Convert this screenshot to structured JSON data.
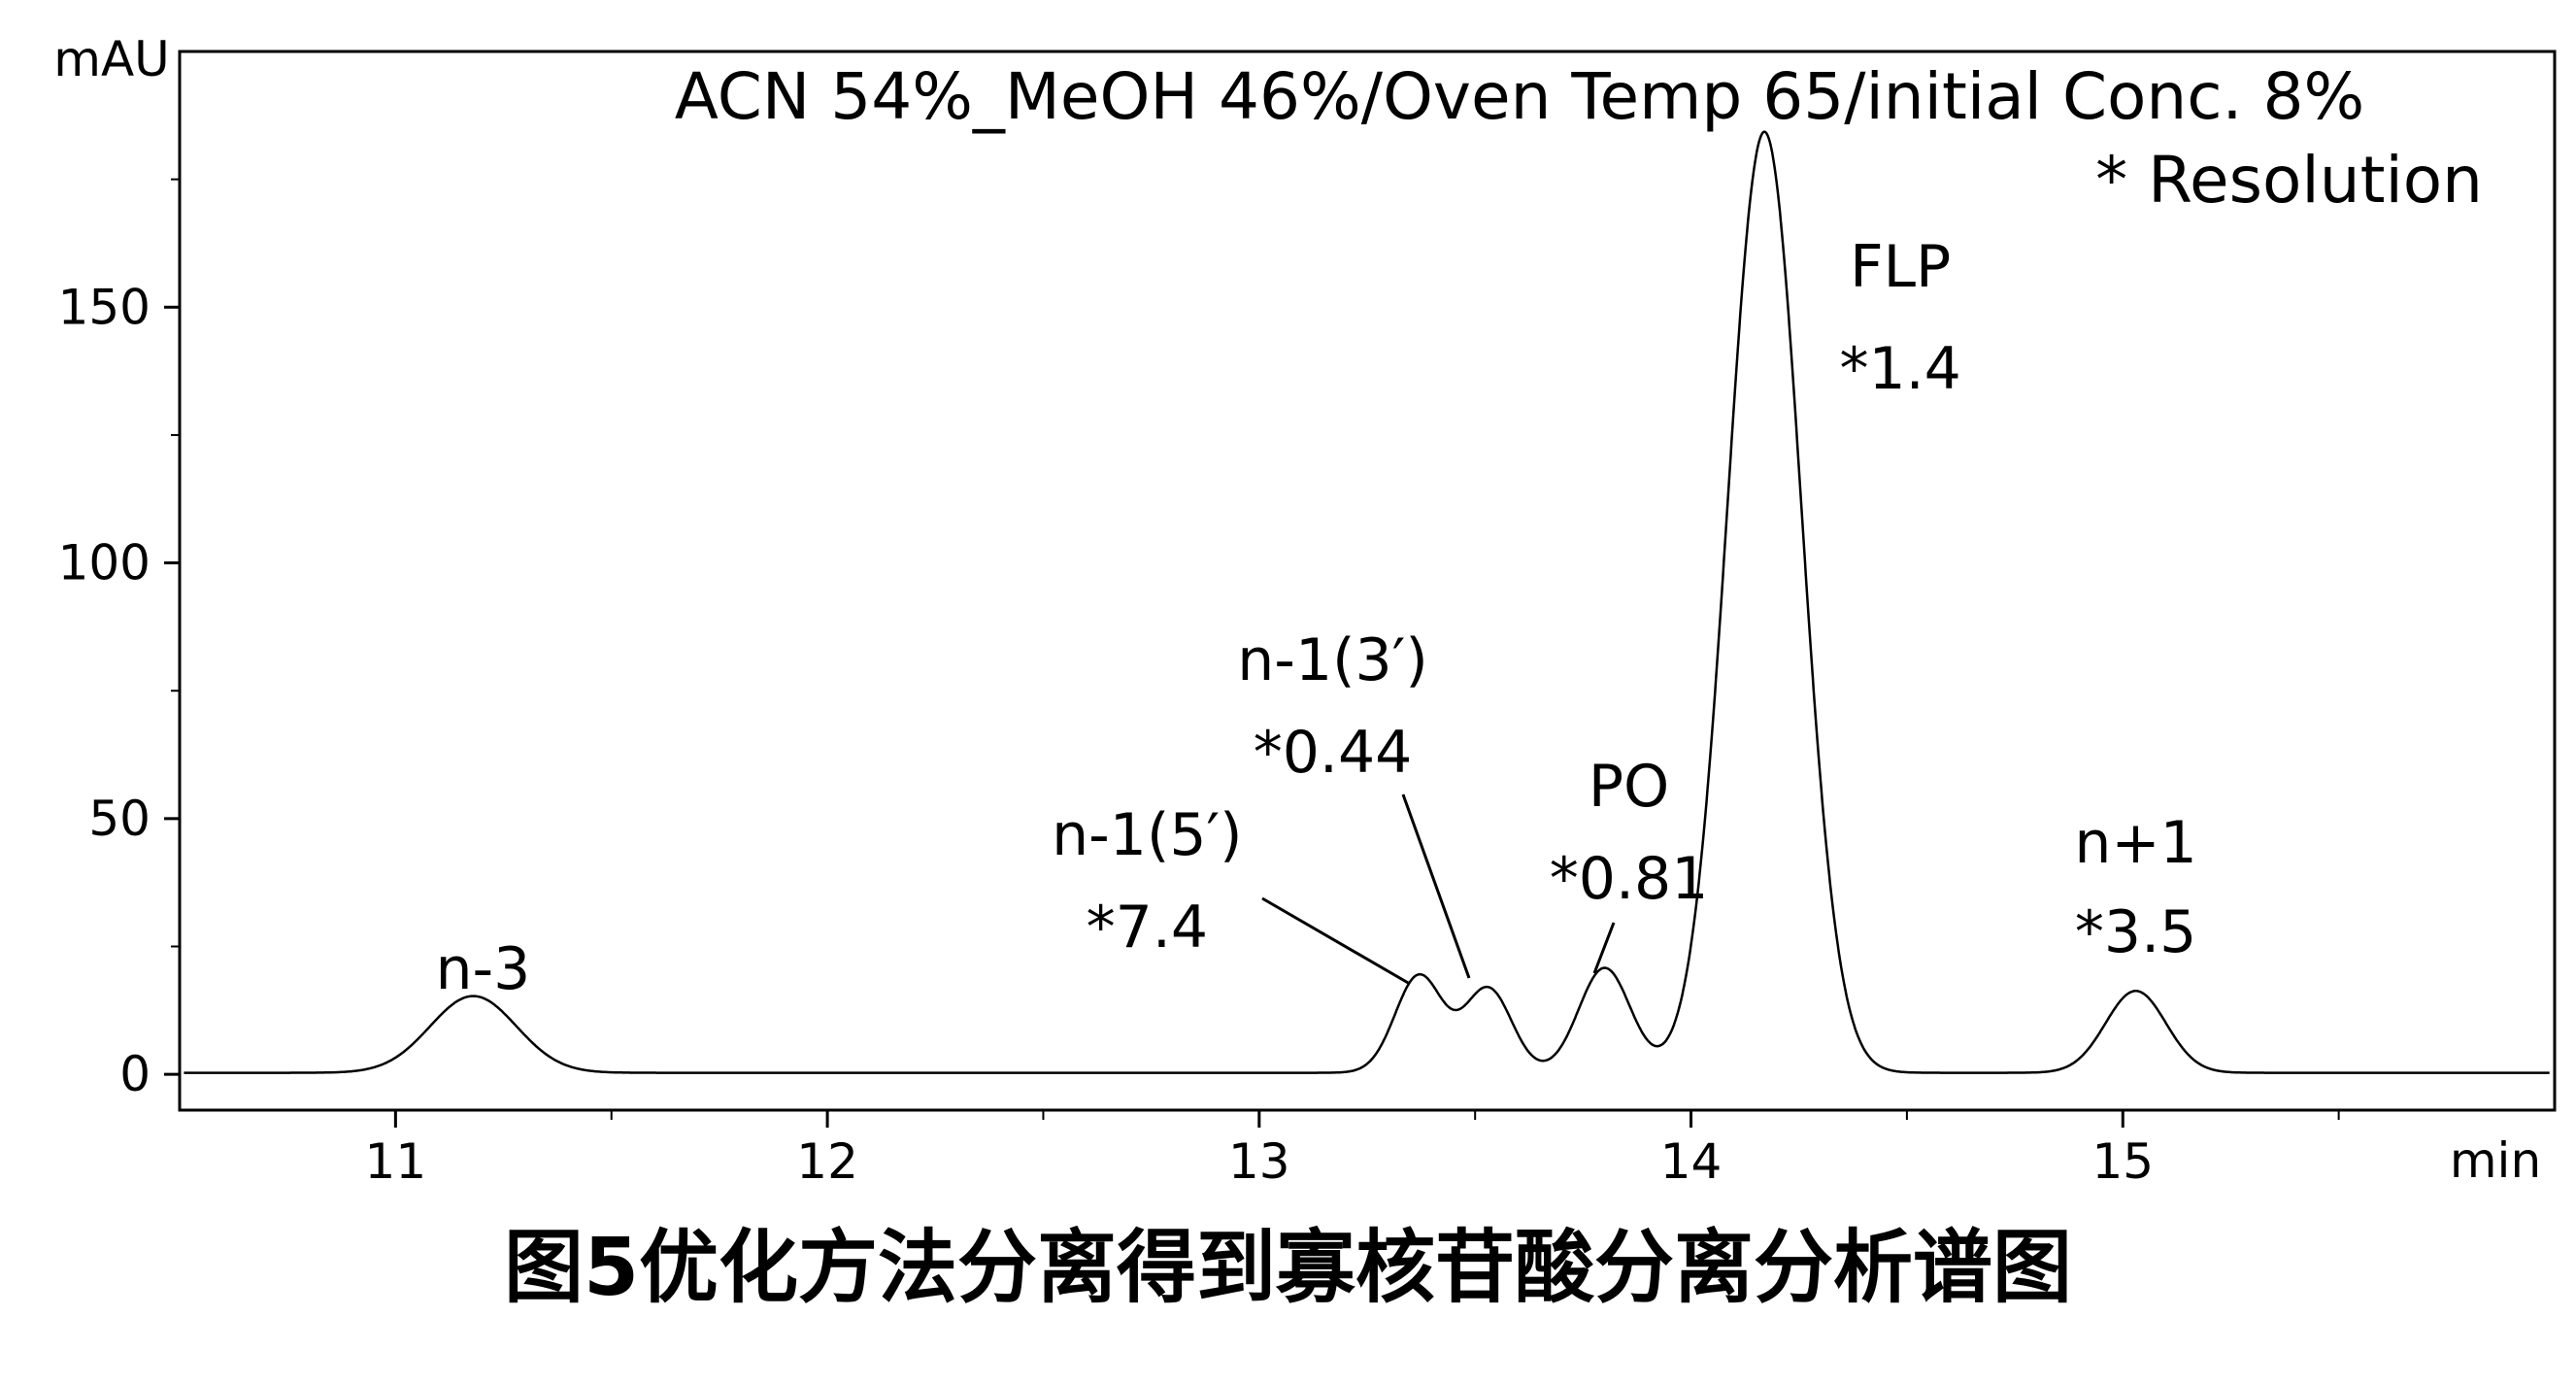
{
  "chart_data": {
    "type": "line",
    "title": "ACN 54%_MeOH 46%/Oven Temp 65/initial Conc. 8%",
    "subtitle": "* Resolution",
    "xlabel": "min",
    "ylabel": "mAU",
    "xlim": [
      10.5,
      16.0
    ],
    "ylim": [
      -7,
      200
    ],
    "xticks": [
      11,
      12,
      13,
      14,
      15
    ],
    "yticks": [
      0,
      50,
      100,
      150
    ],
    "grid": false,
    "baseline": 0.3,
    "peaks": [
      {
        "label": "n-3",
        "resolution": "",
        "rt": 11.18,
        "height": 15,
        "width": 0.1
      },
      {
        "label": "n-1(5′)",
        "resolution": "*7.4",
        "rt": 13.37,
        "height": 19,
        "width": 0.055
      },
      {
        "label": "n-1(3′)",
        "resolution": "*0.44",
        "rt": 13.53,
        "height": 16.5,
        "width": 0.055
      },
      {
        "label": "PO",
        "resolution": "*0.81",
        "rt": 13.8,
        "height": 20.5,
        "width": 0.06
      },
      {
        "label": "FLP",
        "resolution": "*1.4",
        "rt": 14.17,
        "height": 184,
        "width": 0.085
      },
      {
        "label": "n+1",
        "resolution": "*3.5",
        "rt": 15.03,
        "height": 16,
        "width": 0.07
      }
    ]
  },
  "caption": "图5优化方法分离得到寡核苷酸分离分析谱图"
}
